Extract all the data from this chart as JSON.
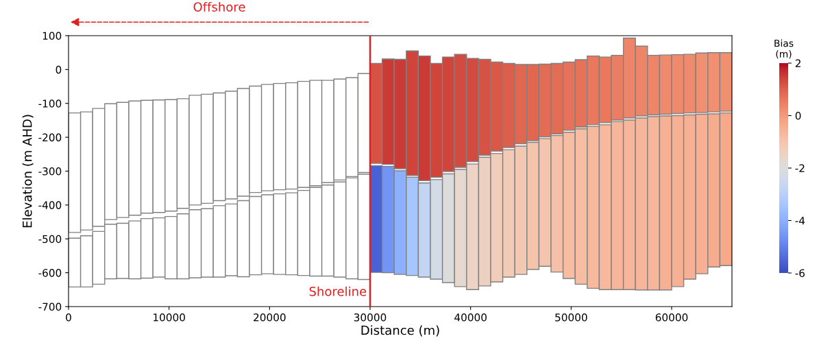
{
  "chart_data": {
    "type": "bar",
    "xlabel": "Distance (m)",
    "ylabel": "Elevation (m AHD)",
    "clabel": "Bias\n(m)",
    "x": [
      600,
      1800,
      3000,
      4200,
      5400,
      6600,
      7800,
      9000,
      10200,
      11400,
      12600,
      13800,
      15000,
      16200,
      17400,
      18600,
      19800,
      21000,
      22200,
      23400,
      24600,
      25800,
      27000,
      28200,
      29400,
      30600,
      31800,
      33000,
      34200,
      35400,
      36600,
      37800,
      39000,
      40200,
      41400,
      42600,
      43800,
      45000,
      46200,
      47400,
      48600,
      49800,
      51000,
      52200,
      53400,
      54600,
      55800,
      57000,
      58200,
      59400,
      60600,
      61800,
      63000,
      64200,
      65400
    ],
    "series": [
      {
        "base": [
          -481,
          -474,
          -463,
          -443,
          -437,
          -430,
          -424,
          -422,
          -418,
          -410,
          -400,
          -395,
          -387,
          -382,
          -374,
          -363,
          -358,
          -355,
          -353,
          -348,
          -343,
          -334,
          -326,
          -316,
          -304,
          -277,
          -280,
          -293,
          -313,
          -328,
          -318,
          -301,
          -289,
          -272,
          -253,
          -241,
          -230,
          -219,
          -210,
          -199,
          -190,
          -179,
          -170,
          -163,
          -157,
          -149,
          -143,
          -137,
          -134,
          -132,
          -130,
          -128,
          -127,
          -125,
          -123
        ],
        "values": [
          353,
          349,
          348,
          342,
          340,
          337,
          333,
          332,
          329,
          324,
          324,
          322,
          318,
          318,
          318,
          314,
          314,
          314,
          314,
          313,
          311,
          302,
          298,
          292,
          292,
          295,
          311,
          323,
          368,
          368,
          336,
          338,
          334,
          305,
          283,
          263,
          248,
          234,
          225,
          215,
          208,
          201,
          199,
          203,
          194,
          191,
          236,
          206,
          176,
          175,
          174,
          173,
          176,
          175,
          173
        ],
        "colors": [
          "#ffffff",
          "#ffffff",
          "#ffffff",
          "#ffffff",
          "#ffffff",
          "#ffffff",
          "#ffffff",
          "#ffffff",
          "#ffffff",
          "#ffffff",
          "#ffffff",
          "#ffffff",
          "#ffffff",
          "#ffffff",
          "#ffffff",
          "#ffffff",
          "#ffffff",
          "#ffffff",
          "#ffffff",
          "#ffffff",
          "#ffffff",
          "#ffffff",
          "#ffffff",
          "#ffffff",
          "#ffffff",
          "#d65244",
          "#ca3b37",
          "#ca3b37",
          "#cf453c",
          "#ca3b37",
          "#cf453c",
          "#cf453c",
          "#d24b40",
          "#d24b40",
          "#d65244",
          "#d95847",
          "#dd5f4b",
          "#e16751",
          "#e16751",
          "#e36c55",
          "#e36c55",
          "#e67259",
          "#e67259",
          "#e9785d",
          "#e9785d",
          "#eb7d62",
          "#ee8468",
          "#ee8468",
          "#ee8468",
          "#f08a6c",
          "#f08a6c",
          "#f08a6c",
          "#f18f71",
          "#f18f71",
          "#f18f71"
        ]
      },
      {
        "base": [
          -642,
          -642,
          -634,
          -618,
          -617,
          -618,
          -616,
          -613,
          -618,
          -618,
          -615,
          -613,
          -613,
          -609,
          -612,
          -606,
          -603,
          -605,
          -606,
          -608,
          -610,
          -610,
          -613,
          -618,
          -620,
          -599,
          -600,
          -605,
          -608,
          -613,
          -619,
          -629,
          -641,
          -650,
          -639,
          -627,
          -613,
          -605,
          -590,
          -581,
          -598,
          -617,
          -634,
          -646,
          -650,
          -650,
          -650,
          -651,
          -651,
          -651,
          -641,
          -619,
          -603,
          -583,
          -579
        ],
        "values": [
          144,
          151,
          156,
          161,
          163,
          171,
          176,
          175,
          184,
          192,
          201,
          202,
          211,
          212,
          225,
          231,
          233,
          238,
          242,
          251,
          262,
          269,
          281,
          298,
          311,
          315,
          314,
          306,
          290,
          278,
          294,
          321,
          346,
          371,
          380,
          379,
          376,
          379,
          375,
          377,
          403,
          432,
          459,
          478,
          487,
          496,
          501,
          508,
          512,
          514,
          505,
          485,
          471,
          452,
          451
        ],
        "colors": [
          "#ffffff",
          "#ffffff",
          "#ffffff",
          "#ffffff",
          "#ffffff",
          "#ffffff",
          "#ffffff",
          "#ffffff",
          "#ffffff",
          "#ffffff",
          "#ffffff",
          "#ffffff",
          "#ffffff",
          "#ffffff",
          "#ffffff",
          "#ffffff",
          "#ffffff",
          "#ffffff",
          "#ffffff",
          "#ffffff",
          "#ffffff",
          "#ffffff",
          "#ffffff",
          "#ffffff",
          "#ffffff",
          "#4961d2",
          "#7295f4",
          "#8db0fe",
          "#a7c5fe",
          "#c4d5f3",
          "#d3dbe7",
          "#dddcdc",
          "#e6d7cf",
          "#ecd3c5",
          "#eed0c0",
          "#f0cdbb",
          "#f2cbb7",
          "#f3c8b2",
          "#f5c4ac",
          "#f5c4ac",
          "#f5c0a7",
          "#f6bda2",
          "#f6bda2",
          "#f7b99e",
          "#f7b99e",
          "#f7b599",
          "#f7b599",
          "#f7b599",
          "#f7b599",
          "#f7b093",
          "#f7b093",
          "#f7b093",
          "#f7b093",
          "#f7ac8e",
          "#f7a889"
        ]
      }
    ],
    "xlim": [
      0,
      66000
    ],
    "xticks": [
      0,
      10000,
      20000,
      30000,
      40000,
      50000,
      60000
    ],
    "ylim": [
      -700,
      100
    ],
    "yticks": [
      -700,
      -600,
      -500,
      -400,
      -300,
      -200,
      -100,
      0,
      100
    ],
    "clim": [
      -6,
      2
    ],
    "cticks": [
      -6,
      -4,
      -2,
      0,
      2
    ],
    "ref_lines": [
      {
        "axis": "x",
        "value": 30000,
        "label": "Shoreline",
        "color": "#e02020"
      }
    ],
    "annotations": [
      "Offshore"
    ],
    "grid": false,
    "legend": false
  }
}
